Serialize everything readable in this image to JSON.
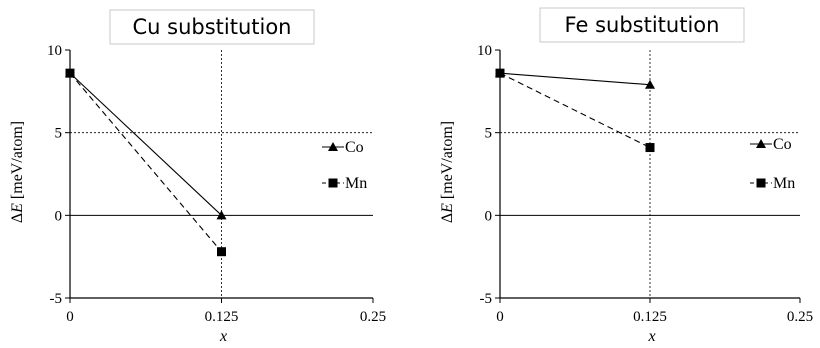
{
  "chart_data": [
    {
      "type": "line",
      "title": "Cu substitution",
      "xlabel_prefix": "",
      "xlabel_italic": "x",
      "ylabel_greek": "Δ",
      "ylabel_italic": "E",
      "ylabel_unit": " [meV/atom]",
      "xlim": [
        0,
        0.25
      ],
      "ylim": [
        -5,
        10
      ],
      "xticks": [
        "0",
        "0.125",
        "0.25"
      ],
      "xtick_values": [
        0,
        0.125,
        0.25
      ],
      "yticks": [
        "10",
        "5",
        "0",
        "-5"
      ],
      "ytick_values": [
        10,
        5,
        0,
        -5
      ],
      "grid": {
        "dashed_x": [
          0.125
        ],
        "dashed_y": [
          5
        ],
        "solid_y": [
          0
        ]
      },
      "legend_position": "right",
      "series": [
        {
          "name": "Co",
          "marker": "triangle",
          "line": "solid",
          "x": [
            0,
            0.125
          ],
          "y": [
            8.6,
            0
          ]
        },
        {
          "name": "Mn",
          "marker": "square",
          "line": "dashed",
          "x": [
            0,
            0.125
          ],
          "y": [
            8.6,
            -2.2
          ]
        }
      ]
    },
    {
      "type": "line",
      "title": "Fe substitution",
      "xlabel_prefix": "",
      "xlabel_italic": "x",
      "ylabel_greek": "Δ",
      "ylabel_italic": "E",
      "ylabel_unit": " [meV/atom]",
      "xlim": [
        0,
        0.25
      ],
      "ylim": [
        -5,
        10
      ],
      "xticks": [
        "0",
        "0.125",
        "0.25"
      ],
      "xtick_values": [
        0,
        0.125,
        0.25
      ],
      "yticks": [
        "10",
        "5",
        "0",
        "-5"
      ],
      "ytick_values": [
        10,
        5,
        0,
        -5
      ],
      "grid": {
        "dashed_x": [
          0.125
        ],
        "dashed_y": [
          5
        ],
        "solid_y": [
          0
        ]
      },
      "legend_position": "right",
      "series": [
        {
          "name": "Co",
          "marker": "triangle",
          "line": "solid",
          "x": [
            0,
            0.125
          ],
          "y": [
            8.6,
            7.9
          ]
        },
        {
          "name": "Mn",
          "marker": "square",
          "line": "dashed",
          "x": [
            0,
            0.125
          ],
          "y": [
            8.6,
            4.1
          ]
        }
      ]
    }
  ]
}
